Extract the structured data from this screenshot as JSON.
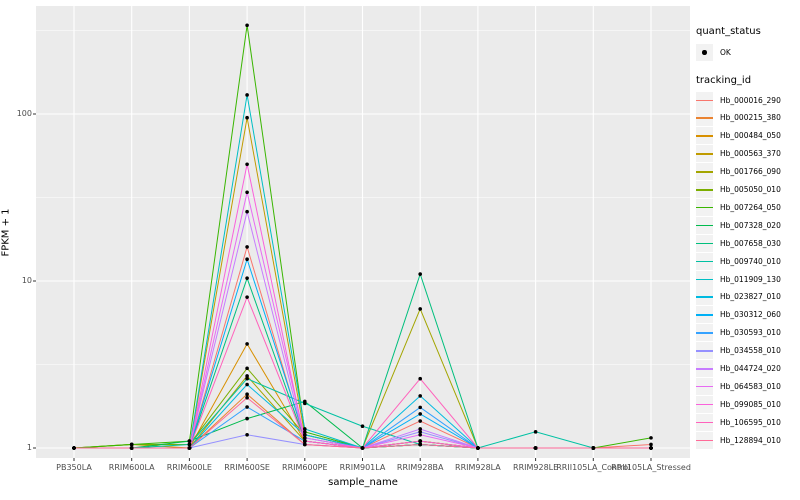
{
  "chart_data": {
    "type": "line",
    "title": "",
    "xlabel": "sample_name",
    "ylabel": "FPKM + 1",
    "y_scale": "log10",
    "ylim": [
      1,
      400
    ],
    "y_ticks": [
      1,
      10,
      100
    ],
    "y_minor_ticks": [
      3.1623,
      31.623,
      316.23
    ],
    "grid": "on",
    "panel_background": "#EBEBEB",
    "grid_color": "#FFFFFF",
    "point_color": "#000000",
    "legend_position": "right",
    "categories": [
      "PB350LA",
      "RRIM600LA",
      "RRIM600LE",
      "RRIM600SE",
      "RRIM600PE",
      "RRIM901LA",
      "RRIM928BA",
      "RRIM928LA",
      "RRIM928LE",
      "RRII105LA_Control",
      "RRII105LA_Stressed"
    ],
    "series": [
      {
        "name": "Hb_000016_290",
        "color": "#F8766D",
        "values": [
          1,
          1,
          1,
          16,
          1.1,
          1,
          1.45,
          1,
          1,
          1,
          1.05
        ]
      },
      {
        "name": "Hb_000215_380",
        "color": "#EA8331",
        "values": [
          1,
          1,
          1,
          2.1,
          1.05,
          1,
          1.1,
          1,
          1,
          1,
          1
        ]
      },
      {
        "name": "Hb_000484_050",
        "color": "#D89000",
        "values": [
          1,
          1,
          1,
          4.2,
          1.1,
          1,
          1.1,
          1,
          1,
          1,
          1
        ]
      },
      {
        "name": "Hb_000563_370",
        "color": "#C09B00",
        "values": [
          1,
          1.05,
          1,
          95,
          1.2,
          1,
          1.05,
          1,
          1,
          1,
          1
        ]
      },
      {
        "name": "Hb_001766_090",
        "color": "#A3A500",
        "values": [
          1,
          1,
          1,
          2.7,
          1.1,
          1,
          6.8,
          1,
          1,
          1,
          1
        ]
      },
      {
        "name": "Hb_005050_010",
        "color": "#7CAE00",
        "values": [
          1,
          1.05,
          1.05,
          3.0,
          1.2,
          1,
          1.1,
          1,
          1,
          1,
          1
        ]
      },
      {
        "name": "Hb_007264_050",
        "color": "#39B600",
        "values": [
          1,
          1.05,
          1.1,
          340,
          1.25,
          1,
          1.05,
          1,
          1,
          1,
          1.15
        ]
      },
      {
        "name": "Hb_007328_020",
        "color": "#00BB4E",
        "values": [
          1,
          1,
          1.1,
          1.5,
          1.9,
          1,
          1.05,
          1,
          1,
          1,
          1
        ]
      },
      {
        "name": "Hb_007658_030",
        "color": "#00BF7D",
        "values": [
          1,
          1,
          1,
          10.4,
          1.1,
          1,
          11,
          1,
          1,
          1,
          1
        ]
      },
      {
        "name": "Hb_009740_010",
        "color": "#00C1A3",
        "values": [
          1,
          1,
          1.05,
          2.6,
          1.85,
          1.35,
          1.05,
          1,
          1.25,
          1,
          1
        ]
      },
      {
        "name": "Hb_011909_130",
        "color": "#00BFC4",
        "values": [
          1,
          1,
          1,
          130,
          1.3,
          1,
          1.05,
          1,
          1,
          1,
          1
        ]
      },
      {
        "name": "Hb_023827_010",
        "color": "#00BAE0",
        "values": [
          1,
          1,
          1,
          2.4,
          1.2,
          1,
          2.05,
          1,
          1,
          1,
          1
        ]
      },
      {
        "name": "Hb_030312_060",
        "color": "#00B0F6",
        "values": [
          1,
          1,
          1,
          13.5,
          1.15,
          1,
          1.6,
          1,
          1,
          1,
          1
        ]
      },
      {
        "name": "Hb_030593_010",
        "color": "#35A2FF",
        "values": [
          1,
          1,
          1,
          1.76,
          1.1,
          1,
          1.75,
          1,
          1,
          1,
          1
        ]
      },
      {
        "name": "Hb_034558_010",
        "color": "#9590FF",
        "values": [
          1,
          1,
          1,
          1.2,
          1.05,
          1,
          1.25,
          1,
          1,
          1,
          1
        ]
      },
      {
        "name": "Hb_044724_020",
        "color": "#C77CFF",
        "values": [
          1,
          1,
          1,
          26,
          1.1,
          1,
          1.3,
          1,
          1,
          1,
          1
        ]
      },
      {
        "name": "Hb_064583_010",
        "color": "#E76BF3",
        "values": [
          1,
          1,
          1,
          34,
          1.15,
          1,
          1.2,
          1,
          1,
          1,
          1
        ]
      },
      {
        "name": "Hb_099085_010",
        "color": "#FA62DB",
        "values": [
          1,
          1,
          1,
          50,
          1.1,
          1,
          1.1,
          1,
          1,
          1,
          1
        ]
      },
      {
        "name": "Hb_106595_010",
        "color": "#FF62BC",
        "values": [
          1,
          1,
          1,
          8,
          1.1,
          1,
          2.6,
          1,
          1,
          1,
          1
        ]
      },
      {
        "name": "Hb_128894_010",
        "color": "#FF6A98",
        "values": [
          1,
          1,
          1,
          2.0,
          1.05,
          1,
          1.05,
          1,
          1,
          1,
          1
        ]
      }
    ],
    "legend": {
      "quant_status": {
        "title": "quant_status",
        "items": [
          {
            "label": "OK",
            "symbol": "point"
          }
        ]
      },
      "tracking": {
        "title": "tracking_id"
      }
    }
  }
}
